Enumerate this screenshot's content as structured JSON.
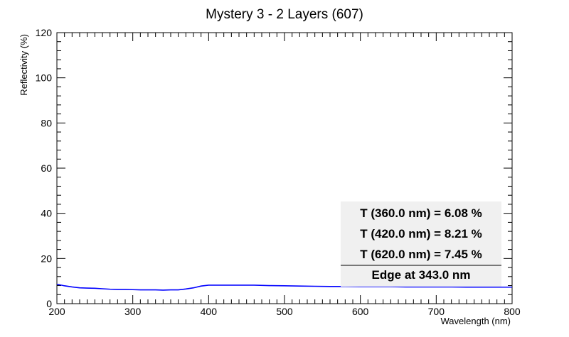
{
  "chart_data": {
    "type": "line",
    "title": "Mystery 3 - 2 Layers (607)",
    "xlabel": "Wavelength (nm)",
    "ylabel": "Reflectivity (%)",
    "xlim": [
      200,
      800
    ],
    "ylim": [
      0,
      120
    ],
    "x_ticks": [
      200,
      300,
      400,
      500,
      600,
      700,
      800
    ],
    "y_ticks": [
      0,
      20,
      40,
      60,
      80,
      100,
      120
    ],
    "series_color": "#0000ff",
    "series": [
      {
        "x": [
          200,
          210,
          220,
          230,
          240,
          250,
          260,
          270,
          280,
          290,
          300,
          310,
          320,
          330,
          340,
          350,
          360,
          370,
          380,
          390,
          400,
          420,
          440,
          460,
          480,
          500,
          520,
          540,
          560,
          580,
          600,
          620,
          640,
          660,
          680,
          700,
          720,
          740,
          760,
          780,
          800
        ],
        "y": [
          8.6,
          7.9,
          7.4,
          7.0,
          6.9,
          6.8,
          6.6,
          6.4,
          6.3,
          6.3,
          6.2,
          6.1,
          6.1,
          6.1,
          6.0,
          6.1,
          6.1,
          6.5,
          7.0,
          7.8,
          8.2,
          8.2,
          8.2,
          8.2,
          8.0,
          7.9,
          7.8,
          7.7,
          7.6,
          7.6,
          7.5,
          7.5,
          7.5,
          7.4,
          7.4,
          7.4,
          7.4,
          7.3,
          7.3,
          7.3,
          7.3
        ]
      }
    ],
    "stats_box": {
      "lines": [
        "T (360.0 nm) = 6.08 %",
        "T (420.0 nm) = 8.21 %",
        "T (620.0 nm) = 7.45 %"
      ],
      "edge": "Edge at 343.0 nm"
    }
  }
}
